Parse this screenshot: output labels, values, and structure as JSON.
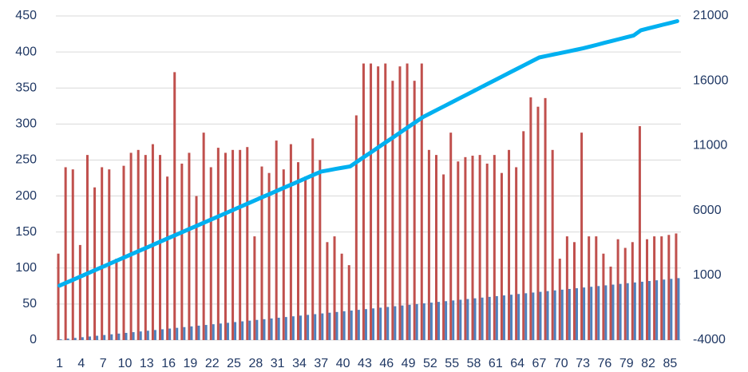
{
  "chart_data": {
    "type": "bar",
    "categories": [
      "1",
      null,
      null,
      "4",
      null,
      null,
      "7",
      null,
      null,
      "10",
      null,
      null,
      "13",
      null,
      null,
      "16",
      null,
      null,
      "19",
      null,
      null,
      "22",
      null,
      null,
      "25",
      null,
      null,
      "28",
      null,
      null,
      "31",
      null,
      null,
      "34",
      null,
      null,
      "37",
      null,
      null,
      "40",
      null,
      null,
      "43",
      null,
      null,
      "46",
      null,
      null,
      "49",
      null,
      null,
      "52",
      null,
      null,
      "55",
      null,
      null,
      "58",
      null,
      null,
      "61",
      null,
      null,
      "64",
      null,
      null,
      "67",
      null,
      null,
      "70",
      null,
      null,
      "73",
      null,
      null,
      "76",
      null,
      null,
      "79",
      null,
      null,
      "82",
      null,
      null,
      "85",
      null
    ],
    "series": [
      {
        "type": "bar",
        "color": "#c0504d",
        "values": [
          120,
          240,
          237,
          132,
          257,
          212,
          240,
          237,
          113,
          242,
          260,
          264,
          257,
          272,
          257,
          227,
          372,
          245,
          260,
          200,
          288,
          240,
          267,
          260,
          264,
          264,
          268,
          144,
          241,
          232,
          277,
          237,
          272,
          247,
          227,
          280,
          250,
          136,
          144,
          120,
          104,
          312,
          384,
          384,
          380,
          384,
          360,
          380,
          384,
          360,
          384,
          264,
          257,
          230,
          288,
          248,
          254,
          256,
          257,
          245,
          257,
          232,
          264,
          240,
          290,
          337,
          324,
          336,
          264,
          113,
          144,
          136,
          288,
          144,
          144,
          120,
          102,
          140,
          128,
          136,
          297,
          140,
          144,
          144,
          146,
          148
        ]
      },
      {
        "type": "bar",
        "color": "#4f81bd",
        "values": [
          1,
          2,
          3,
          4,
          5,
          6,
          7,
          8,
          9,
          10,
          11,
          12,
          13,
          14,
          15,
          16,
          17,
          18,
          19,
          20,
          21,
          22,
          23,
          24,
          25,
          26,
          27,
          28,
          29,
          30,
          31,
          32,
          33,
          34,
          35,
          36,
          37,
          38,
          39,
          40,
          41,
          42,
          43,
          44,
          45,
          46,
          47,
          48,
          49,
          50,
          51,
          52,
          53,
          54,
          55,
          56,
          57,
          58,
          59,
          60,
          61,
          62,
          63,
          64,
          65,
          66,
          67,
          68,
          69,
          70,
          71,
          72,
          73,
          74,
          75,
          76,
          77,
          78,
          79,
          80,
          81,
          82,
          83,
          84,
          85,
          86
        ]
      },
      {
        "type": "line",
        "axis": "y2",
        "color": "#00b0f0",
        "values": [
          200,
          444,
          689,
          933,
          1178,
          1422,
          1667,
          1911,
          2156,
          2400,
          2644,
          2889,
          3133,
          3378,
          3622,
          3867,
          4111,
          4356,
          4600,
          4844,
          5089,
          5333,
          5578,
          5822,
          6067,
          6311,
          6556,
          6800,
          7044,
          7289,
          7533,
          7778,
          8022,
          8267,
          8511,
          8756,
          9000,
          9100,
          9200,
          9300,
          9400,
          9780,
          10160,
          10540,
          10920,
          11300,
          11680,
          12060,
          12440,
          12820,
          13200,
          13488,
          13775,
          14063,
          14350,
          14638,
          14925,
          15213,
          15500,
          15788,
          16075,
          16363,
          16650,
          16938,
          17225,
          17513,
          17800,
          17917,
          18033,
          18150,
          18267,
          18383,
          18500,
          18643,
          18786,
          18929,
          19071,
          19214,
          19357,
          19500,
          19900,
          20040,
          20180,
          20320,
          20460,
          20600
        ]
      }
    ],
    "ylim": [
      0,
      450
    ],
    "yticks": [
      0,
      50,
      100,
      150,
      200,
      250,
      300,
      350,
      400,
      450
    ],
    "y2lim": [
      -4000,
      21000
    ],
    "y2ticks": [
      -4000,
      1000,
      6000,
      11000,
      16000,
      21000
    ],
    "grid": true
  }
}
